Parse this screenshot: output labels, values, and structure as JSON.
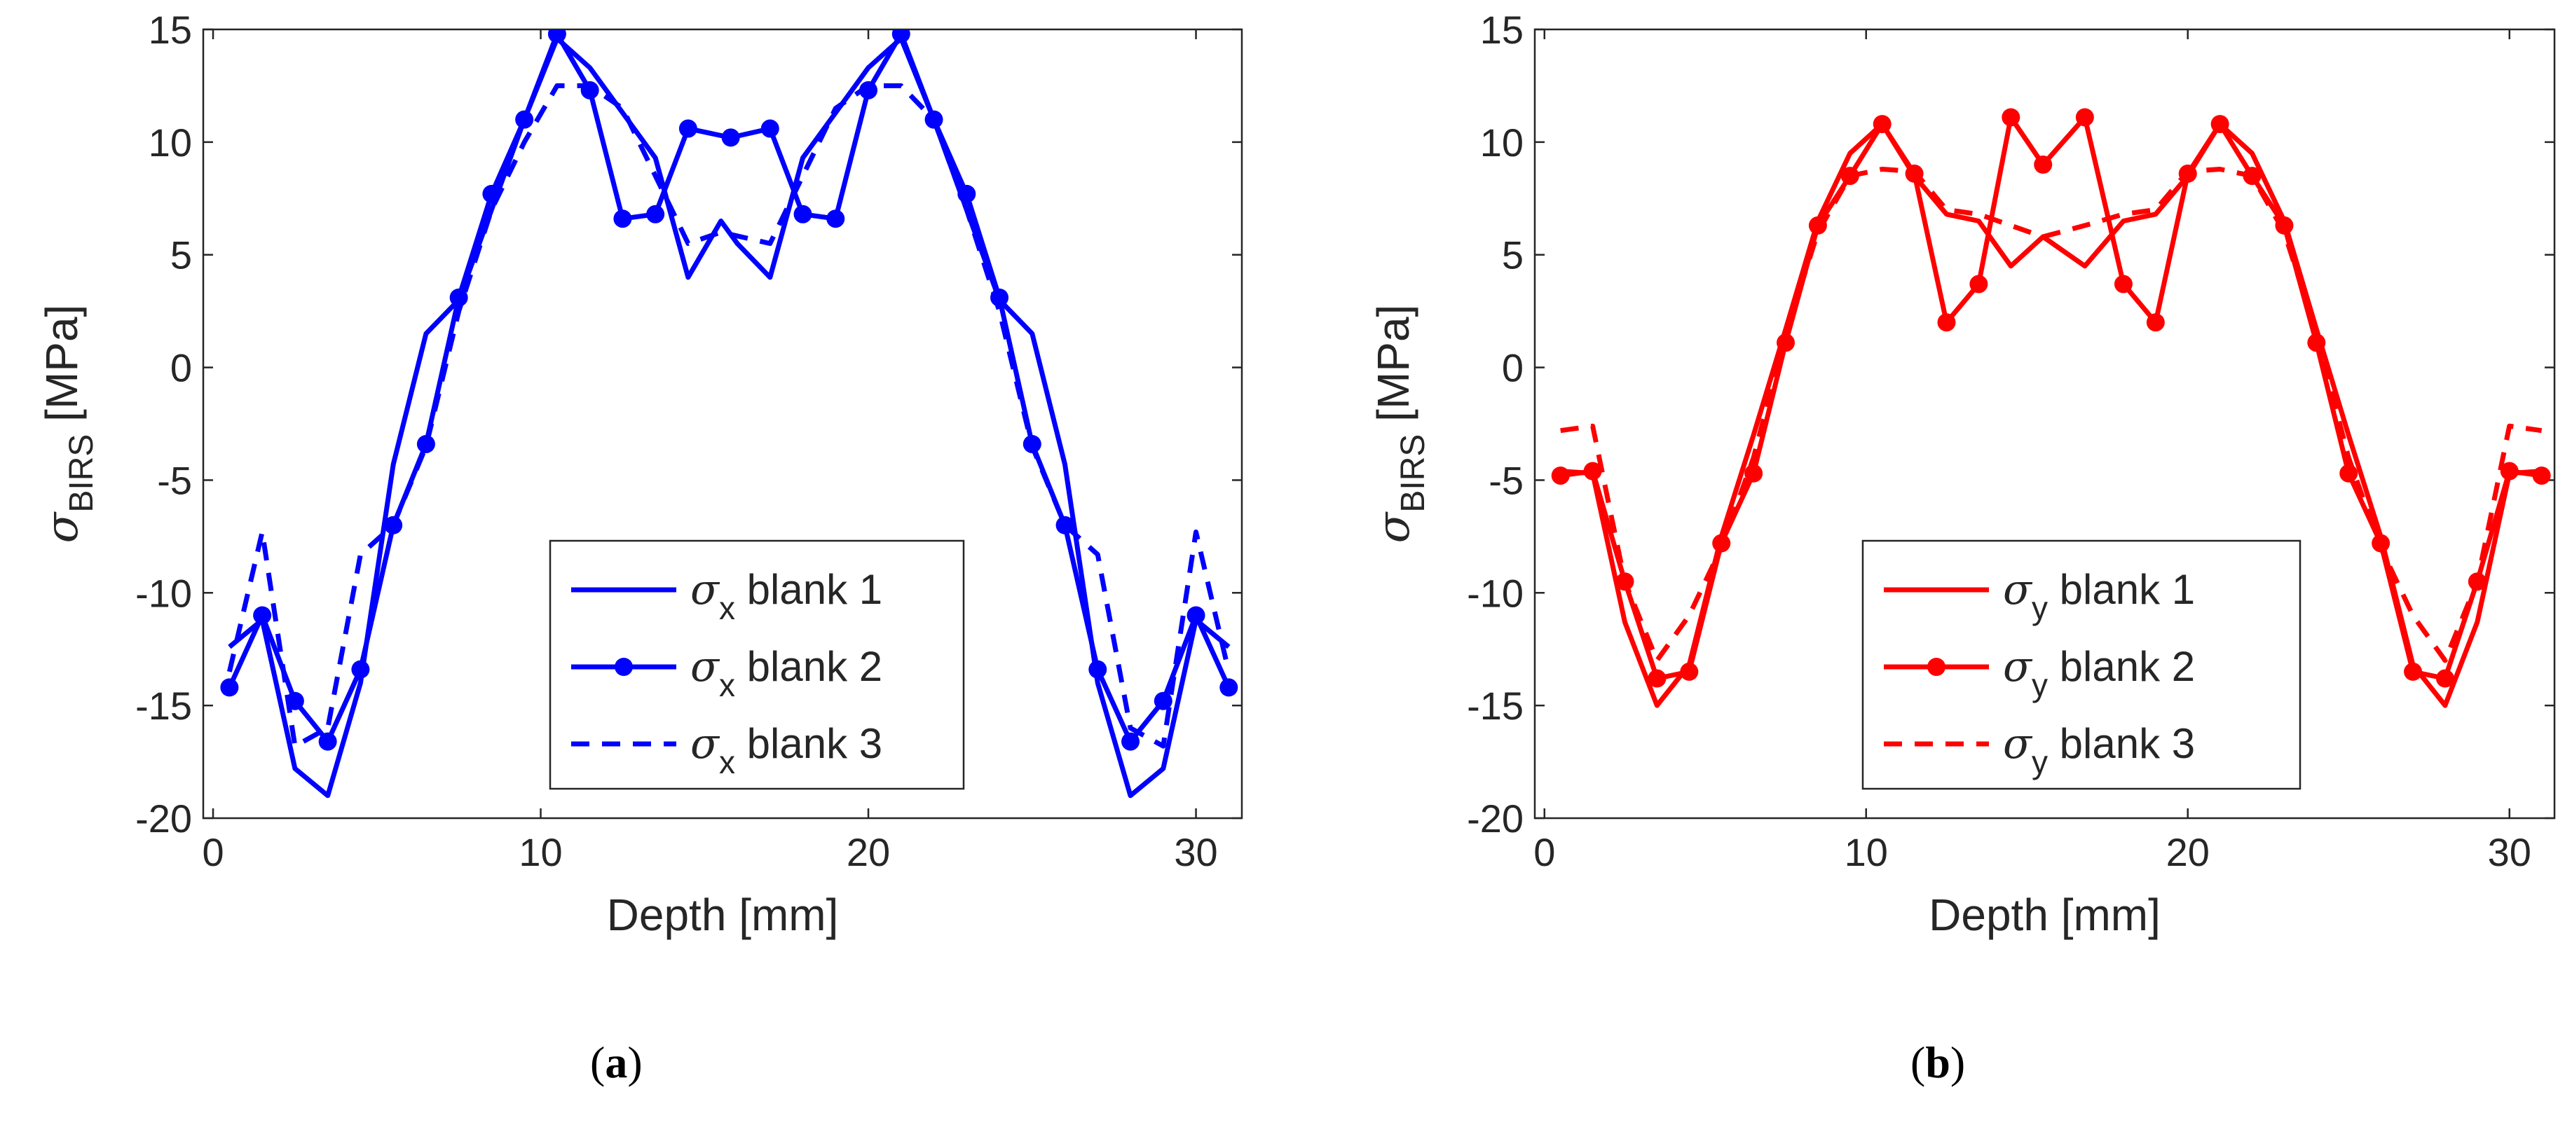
{
  "colors": {
    "panel_a": "#0000ff",
    "panel_b": "#ff0000",
    "axis": "#262626",
    "text": "#262626"
  },
  "panel_labels": {
    "a": "a",
    "b": "b"
  },
  "chart_data": [
    {
      "type": "line",
      "panel": "a",
      "xlabel": "Depth [mm]",
      "ylabel": "σ",
      "ylabel_sub": "BIRS",
      "ylabel_unit": "[MPa]",
      "xlim": [
        -0.3,
        31.4
      ],
      "ylim": [
        -20,
        15
      ],
      "xticks": [
        0,
        10,
        20,
        30
      ],
      "yticks": [
        -20,
        -15,
        -10,
        -5,
        0,
        5,
        10,
        15
      ],
      "legend_position": "lower-center",
      "series": [
        {
          "name": "blank 1",
          "symbol": "σ",
          "sub": "x",
          "style": "solid",
          "x": [
            0.5,
            1.5,
            2.5,
            3.5,
            4.5,
            5.5,
            6.5,
            7.5,
            8.5,
            9.5,
            10.5,
            11.5,
            12.5,
            13.5,
            14.5,
            15.5,
            16,
            17,
            18,
            19,
            20,
            21,
            22,
            23,
            24,
            25,
            26,
            27,
            28,
            29,
            30,
            31
          ],
          "y": [
            -12.4,
            -11.2,
            -17.8,
            -19,
            -14,
            -4.3,
            1.5,
            3,
            7,
            11,
            14.6,
            13.3,
            11.3,
            9.3,
            4,
            6.5,
            5.5,
            4,
            9.3,
            11.3,
            13.3,
            14.6,
            11,
            7,
            3,
            1.5,
            -4.3,
            -14,
            -19,
            -17.8,
            -11.2,
            -12.4
          ]
        },
        {
          "name": "blank 2",
          "symbol": "σ",
          "sub": "x",
          "style": "solid-marker",
          "x": [
            0.5,
            1.5,
            2.5,
            3.5,
            4.5,
            5.5,
            6.5,
            7.5,
            8.5,
            9.5,
            10.5,
            11.5,
            12.5,
            13.5,
            14.5,
            15.8,
            17,
            18,
            19,
            20,
            21,
            22,
            23,
            24,
            25,
            26,
            27,
            28,
            29,
            30,
            31
          ],
          "y": [
            -14.2,
            -11,
            -14.8,
            -16.6,
            -13.4,
            -7,
            -3.4,
            3.1,
            7.7,
            11,
            14.8,
            12.3,
            6.6,
            6.8,
            10.6,
            10.2,
            10.6,
            6.8,
            6.6,
            12.3,
            14.8,
            11,
            7.7,
            3.1,
            -3.4,
            -7,
            -13.4,
            -16.6,
            -14.8,
            -11,
            -14.2
          ]
        },
        {
          "name": "blank 3",
          "symbol": "σ",
          "sub": "x",
          "style": "dashed",
          "x": [
            0.5,
            1.5,
            2.5,
            3.5,
            4.5,
            5.5,
            6.5,
            7.5,
            8.5,
            9.5,
            10.5,
            11.5,
            12.5,
            13.5,
            14.5,
            15.5,
            17,
            18,
            19,
            20,
            21,
            22,
            23,
            24,
            25,
            26,
            27,
            28,
            29,
            30,
            31
          ],
          "y": [
            -13.5,
            -7.3,
            -16.8,
            -16,
            -8.3,
            -7,
            -3.5,
            2.5,
            7,
            10,
            12.5,
            12.5,
            11.5,
            8.5,
            5.5,
            6,
            5.5,
            8.5,
            11.5,
            12.5,
            12.5,
            11,
            7,
            2.5,
            -3.5,
            -7,
            -8.3,
            -16,
            -16.8,
            -7.3,
            -13.5
          ]
        }
      ]
    },
    {
      "type": "line",
      "panel": "b",
      "xlabel": "Depth [mm]",
      "ylabel": "σ",
      "ylabel_sub": "BIRS",
      "ylabel_unit": "[MPa]",
      "xlim": [
        -0.3,
        31.4
      ],
      "ylim": [
        -20,
        15
      ],
      "xticks": [
        0,
        10,
        20,
        30
      ],
      "yticks": [
        -20,
        -15,
        -10,
        -5,
        0,
        5,
        10,
        15
      ],
      "legend_position": "lower-center",
      "series": [
        {
          "name": "blank 1",
          "symbol": "σ",
          "sub": "y",
          "style": "solid",
          "x": [
            0.5,
            1.5,
            2.5,
            3.5,
            4.5,
            5.5,
            6.5,
            7.5,
            8.5,
            9.5,
            10.5,
            11.5,
            12.5,
            13.5,
            14.5,
            15.5,
            16.8,
            18,
            19,
            20,
            21,
            22,
            23,
            24,
            25,
            26,
            27,
            28,
            29,
            30,
            31
          ],
          "y": [
            -4.6,
            -4.7,
            -11.3,
            -15,
            -13.2,
            -7.5,
            -3,
            1.7,
            6.5,
            9.5,
            10.8,
            8.5,
            6.8,
            6.5,
            4.5,
            5.8,
            4.5,
            6.5,
            6.8,
            8.5,
            10.8,
            9.5,
            6.5,
            1.7,
            -3,
            -7.5,
            -13.2,
            -15,
            -11.3,
            -4.7,
            -4.6
          ]
        },
        {
          "name": "blank 2",
          "symbol": "σ",
          "sub": "y",
          "style": "solid-marker",
          "x": [
            0.5,
            1.5,
            2.5,
            3.5,
            4.5,
            5.5,
            6.5,
            7.5,
            8.5,
            9.5,
            10.5,
            11.5,
            12.5,
            13.5,
            14.5,
            15.5,
            16.8,
            18,
            19,
            20,
            21,
            22,
            23,
            24,
            25,
            26,
            27,
            28,
            29,
            30,
            31
          ],
          "y": [
            -4.8,
            -4.6,
            -9.5,
            -13.8,
            -13.5,
            -7.8,
            -4.7,
            1.1,
            6.3,
            8.5,
            10.8,
            8.6,
            2,
            3.7,
            11.1,
            9,
            11.1,
            3.7,
            2,
            8.6,
            10.8,
            8.5,
            6.3,
            1.1,
            -4.7,
            -7.8,
            -13.5,
            -13.8,
            -9.5,
            -4.6,
            -4.8
          ]
        },
        {
          "name": "blank 3",
          "symbol": "σ",
          "sub": "y",
          "style": "dashed",
          "x": [
            0.5,
            1.5,
            2.5,
            3.5,
            4.5,
            5.5,
            6.5,
            7.5,
            8.5,
            9.5,
            10.5,
            11.5,
            12.5,
            13.5,
            14.5,
            15.5,
            16.8,
            18,
            19,
            20,
            21,
            22,
            23,
            24,
            25,
            26,
            27,
            28,
            29,
            30,
            31
          ],
          "y": [
            -2.8,
            -2.6,
            -9.5,
            -13,
            -11,
            -8,
            -4,
            1.5,
            6,
            8.5,
            8.8,
            8.7,
            7,
            6.8,
            6.3,
            5.8,
            6.3,
            6.8,
            7,
            8.7,
            8.8,
            8.5,
            6,
            1.5,
            -4,
            -8,
            -11,
            -13,
            -9.5,
            -2.6,
            -2.8
          ]
        }
      ]
    }
  ]
}
